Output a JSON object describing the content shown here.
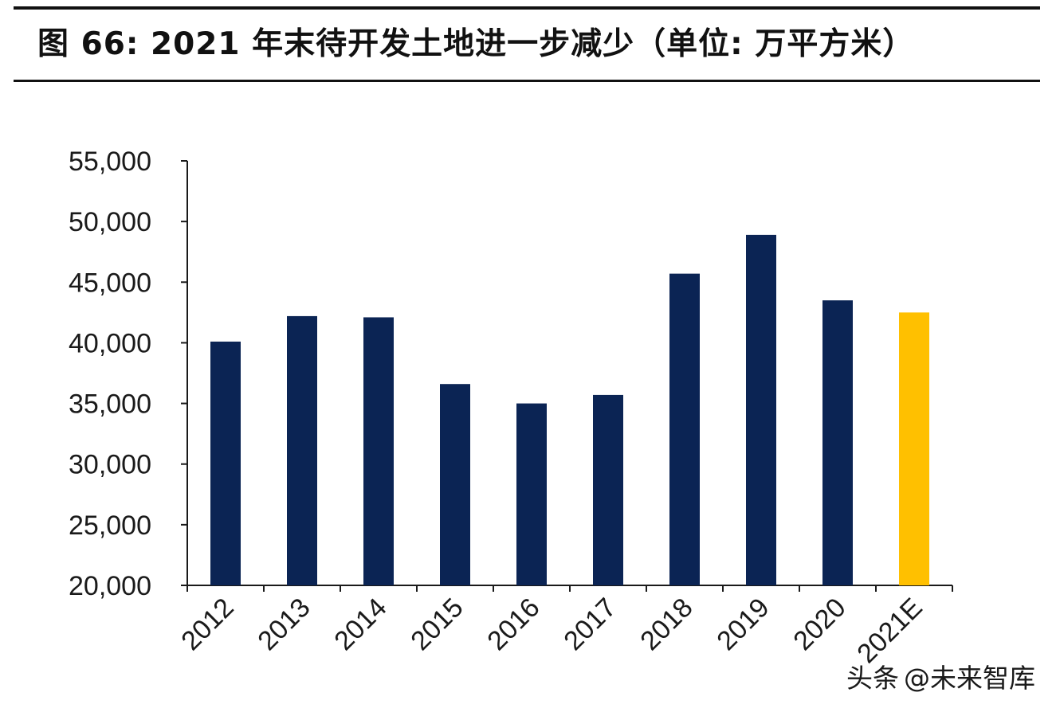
{
  "header": {
    "title": "图 66: 2021 年末待开发土地进一步减少（单位: 万平方米）"
  },
  "watermark": {
    "platform": "头条",
    "handle": "@未来智库"
  },
  "colors": {
    "actual": "#0b2454",
    "estimate": "#ffc000",
    "axis": "#1a1a1a"
  },
  "chart_data": {
    "type": "bar",
    "categories": [
      "2012",
      "2013",
      "2014",
      "2015",
      "2016",
      "2017",
      "2018",
      "2019",
      "2020",
      "2021E"
    ],
    "values": [
      40100,
      42200,
      42100,
      36600,
      35000,
      35700,
      45700,
      48900,
      43500,
      42500
    ],
    "estimate_flags": [
      false,
      false,
      false,
      false,
      false,
      false,
      false,
      false,
      false,
      true
    ],
    "ylim": [
      20000,
      55000
    ],
    "yticks": [
      20000,
      25000,
      30000,
      35000,
      40000,
      45000,
      50000,
      55000
    ],
    "ytick_labels": [
      "20,000",
      "25,000",
      "30,000",
      "35,000",
      "40,000",
      "45,000",
      "50,000",
      "55,000"
    ],
    "grid": false,
    "legend": "none"
  }
}
